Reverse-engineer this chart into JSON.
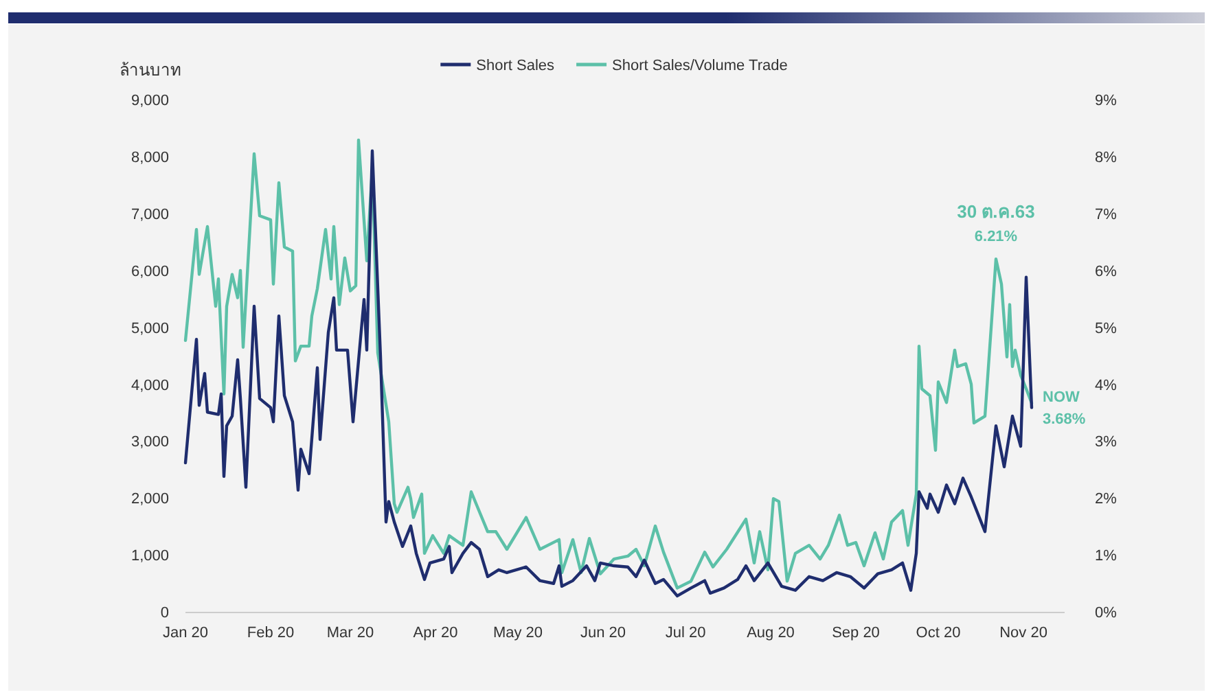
{
  "chart_data": {
    "type": "line",
    "ylabel": "ล้านบาท",
    "legend": "top",
    "annotations": [
      "30 ต.ค.63",
      "6.21%",
      "NOW",
      "3.68%"
    ],
    "xlim": [
      "2020-01-01",
      "2020-11-16"
    ],
    "xticks": [
      {
        "value": "2020-01-01",
        "label": "Jan 20"
      },
      {
        "value": "2020-02-01",
        "label": "Feb 20"
      },
      {
        "value": "2020-03-01",
        "label": "Mar 20"
      },
      {
        "value": "2020-04-01",
        "label": "Apr 20"
      },
      {
        "value": "2020-05-01",
        "label": "May 20"
      },
      {
        "value": "2020-06-01",
        "label": "Jun 20"
      },
      {
        "value": "2020-07-01",
        "label": "Jul 20"
      },
      {
        "value": "2020-08-01",
        "label": "Aug 20"
      },
      {
        "value": "2020-09-01",
        "label": "Sep 20"
      },
      {
        "value": "2020-10-01",
        "label": "Oct 20"
      },
      {
        "value": "2020-11-01",
        "label": "Nov 20"
      }
    ],
    "ylim": [
      0,
      9000
    ],
    "yticks": [
      0,
      {
        "value": 1000,
        "label": "1,000"
      },
      {
        "value": 2000,
        "label": "2,000"
      },
      {
        "value": 3000,
        "label": "3,000"
      },
      {
        "value": 4000,
        "label": "4,000"
      },
      {
        "value": 5000,
        "label": "5,000"
      },
      {
        "value": 6000,
        "label": "6,000"
      },
      {
        "value": 7000,
        "label": "7,000"
      },
      {
        "value": 8000,
        "label": "8,000"
      },
      {
        "value": 9000,
        "label": "9,000"
      }
    ],
    "y2lim": [
      0,
      9
    ],
    "y2ticks": [
      {
        "value": 0,
        "label": "0%"
      },
      {
        "value": 1,
        "label": "1%"
      },
      {
        "value": 2,
        "label": "2%"
      },
      {
        "value": 3,
        "label": "3%"
      },
      {
        "value": 4,
        "label": "4%"
      },
      {
        "value": 5,
        "label": "5%"
      },
      {
        "value": 6,
        "label": "6%"
      },
      {
        "value": 7,
        "label": "7%"
      },
      {
        "value": 8,
        "label": "8%"
      },
      {
        "value": 9,
        "label": "9%"
      }
    ],
    "series": [
      {
        "name": "Short Sales",
        "color": "#1f2d6e",
        "x": [
          "2020-01-01",
          "2020-01-05",
          "2020-01-06",
          "2020-01-08",
          "2020-01-09",
          "2020-01-13",
          "2020-01-14",
          "2020-01-15",
          "2020-01-16",
          "2020-01-18",
          "2020-01-20",
          "2020-01-21",
          "2020-01-23",
          "2020-01-26",
          "2020-01-28",
          "2020-02-01",
          "2020-02-02",
          "2020-02-04",
          "2020-02-06",
          "2020-02-09",
          "2020-02-11",
          "2020-02-12",
          "2020-02-15",
          "2020-02-18",
          "2020-02-19",
          "2020-02-22",
          "2020-02-24",
          "2020-02-25",
          "2020-02-29",
          "2020-03-02",
          "2020-03-06",
          "2020-03-07",
          "2020-03-09",
          "2020-03-12",
          "2020-03-14",
          "2020-03-15",
          "2020-03-17",
          "2020-03-20",
          "2020-03-23",
          "2020-03-25",
          "2020-03-28",
          "2020-03-30",
          "2020-04-04",
          "2020-04-06",
          "2020-04-07",
          "2020-04-11",
          "2020-04-14",
          "2020-04-17",
          "2020-04-20",
          "2020-04-24",
          "2020-04-27",
          "2020-05-04",
          "2020-05-09",
          "2020-05-14",
          "2020-05-16",
          "2020-05-17",
          "2020-05-21",
          "2020-05-26",
          "2020-05-29",
          "2020-05-31",
          "2020-06-05",
          "2020-06-10",
          "2020-06-13",
          "2020-06-16",
          "2020-06-20",
          "2020-06-23",
          "2020-06-28",
          "2020-07-03",
          "2020-07-08",
          "2020-07-10",
          "2020-07-15",
          "2020-07-20",
          "2020-07-23",
          "2020-07-26",
          "2020-07-31",
          "2020-08-05",
          "2020-08-10",
          "2020-08-15",
          "2020-08-20",
          "2020-08-25",
          "2020-08-30",
          "2020-09-04",
          "2020-09-09",
          "2020-09-14",
          "2020-09-18",
          "2020-09-21",
          "2020-09-23",
          "2020-09-24",
          "2020-09-27",
          "2020-09-28",
          "2020-10-01",
          "2020-10-04",
          "2020-10-07",
          "2020-10-10",
          "2020-10-13",
          "2020-10-18",
          "2020-10-22",
          "2020-10-25",
          "2020-10-28",
          "2020-10-31",
          "2020-11-02",
          "2020-11-04"
        ],
        "values": [
          2630,
          4800,
          3640,
          4200,
          3520,
          3480,
          3840,
          2390,
          3280,
          3450,
          4440,
          3760,
          2200,
          5380,
          3760,
          3600,
          3350,
          5210,
          3810,
          3350,
          2150,
          2870,
          2440,
          4300,
          3040,
          4920,
          5530,
          4610,
          4610,
          3350,
          5500,
          4610,
          8110,
          4490,
          1590,
          1950,
          1590,
          1160,
          1520,
          1040,
          580,
          870,
          940,
          1160,
          700,
          1040,
          1230,
          1110,
          630,
          750,
          700,
          800,
          560,
          510,
          820,
          460,
          560,
          820,
          560,
          870,
          820,
          800,
          630,
          920,
          510,
          580,
          290,
          430,
          560,
          340,
          430,
          580,
          820,
          560,
          870,
          460,
          390,
          630,
          560,
          700,
          630,
          430,
          680,
          750,
          870,
          390,
          1040,
          2120,
          1830,
          2080,
          1760,
          2240,
          1910,
          2360,
          2030,
          1420,
          3280,
          2560,
          3450,
          2920,
          5890,
          3600
        ]
      },
      {
        "name": "Short Sales/Volume Trade",
        "color": "#5cc0a8",
        "axis": "y2",
        "x": [
          "2020-01-01",
          "2020-01-05",
          "2020-01-06",
          "2020-01-09",
          "2020-01-12",
          "2020-01-13",
          "2020-01-15",
          "2020-01-16",
          "2020-01-18",
          "2020-01-20",
          "2020-01-21",
          "2020-01-22",
          "2020-01-26",
          "2020-01-28",
          "2020-02-01",
          "2020-02-02",
          "2020-02-04",
          "2020-02-06",
          "2020-02-09",
          "2020-02-10",
          "2020-02-12",
          "2020-02-15",
          "2020-02-16",
          "2020-02-18",
          "2020-02-21",
          "2020-02-23",
          "2020-02-24",
          "2020-02-26",
          "2020-02-28",
          "2020-03-01",
          "2020-03-03",
          "2020-03-04",
          "2020-03-07",
          "2020-03-09",
          "2020-03-11",
          "2020-03-15",
          "2020-03-17",
          "2020-03-18",
          "2020-03-22",
          "2020-03-23",
          "2020-03-24",
          "2020-03-27",
          "2020-03-28",
          "2020-03-31",
          "2020-04-04",
          "2020-04-06",
          "2020-04-11",
          "2020-04-14",
          "2020-04-20",
          "2020-04-23",
          "2020-04-27",
          "2020-05-04",
          "2020-05-09",
          "2020-05-16",
          "2020-05-17",
          "2020-05-21",
          "2020-05-24",
          "2020-05-27",
          "2020-05-31",
          "2020-06-05",
          "2020-06-10",
          "2020-06-13",
          "2020-06-16",
          "2020-06-20",
          "2020-06-23",
          "2020-06-28",
          "2020-07-03",
          "2020-07-08",
          "2020-07-11",
          "2020-07-16",
          "2020-07-23",
          "2020-07-26",
          "2020-07-28",
          "2020-07-31",
          "2020-08-02",
          "2020-08-04",
          "2020-08-07",
          "2020-08-10",
          "2020-08-15",
          "2020-08-19",
          "2020-08-22",
          "2020-08-26",
          "2020-08-29",
          "2020-09-01",
          "2020-09-04",
          "2020-09-08",
          "2020-09-11",
          "2020-09-14",
          "2020-09-18",
          "2020-09-20",
          "2020-09-23",
          "2020-09-24",
          "2020-09-25",
          "2020-09-28",
          "2020-09-30",
          "2020-10-01",
          "2020-10-04",
          "2020-10-07",
          "2020-10-08",
          "2020-10-11",
          "2020-10-13",
          "2020-10-14",
          "2020-10-18",
          "2020-10-22",
          "2020-10-24",
          "2020-10-26",
          "2020-10-27",
          "2020-10-28",
          "2020-10-29",
          "2020-10-31",
          "2020-11-02",
          "2020-11-04"
        ],
        "values": [
          4.78,
          6.73,
          5.94,
          6.78,
          5.38,
          5.86,
          3.84,
          5.38,
          5.94,
          5.53,
          6.01,
          4.66,
          8.06,
          6.97,
          6.9,
          5.77,
          7.55,
          6.42,
          6.35,
          4.42,
          4.68,
          4.68,
          5.21,
          5.69,
          6.73,
          5.86,
          6.78,
          5.41,
          6.23,
          5.65,
          5.74,
          8.3,
          6.18,
          7.79,
          4.56,
          3.35,
          1.91,
          1.76,
          2.2,
          2.0,
          1.67,
          2.08,
          1.04,
          1.35,
          1.04,
          1.35,
          1.18,
          2.12,
          1.42,
          1.42,
          1.11,
          1.67,
          1.11,
          1.28,
          0.7,
          1.28,
          0.7,
          1.3,
          0.68,
          0.94,
          0.99,
          1.11,
          0.82,
          1.52,
          1.06,
          0.43,
          0.55,
          1.06,
          0.8,
          1.11,
          1.64,
          0.87,
          1.42,
          0.75,
          2.0,
          1.95,
          0.55,
          1.04,
          1.18,
          0.94,
          1.18,
          1.71,
          1.18,
          1.23,
          0.82,
          1.4,
          0.94,
          1.59,
          1.79,
          1.18,
          2.08,
          4.68,
          3.93,
          3.81,
          2.85,
          4.05,
          3.69,
          4.61,
          4.32,
          4.37,
          4.01,
          3.33,
          3.45,
          6.21,
          5.77,
          4.49,
          5.41,
          4.32,
          4.61,
          4.17,
          3.93,
          3.68
        ]
      }
    ]
  }
}
